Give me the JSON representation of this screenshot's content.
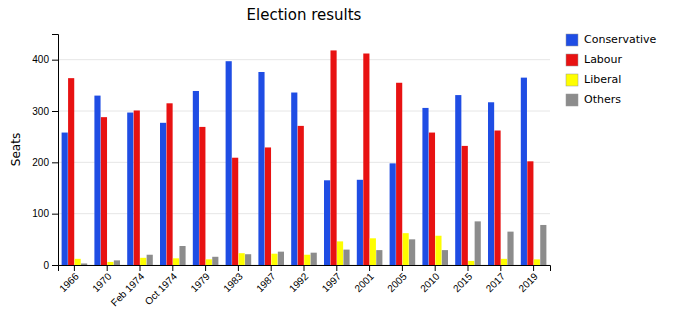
{
  "chart_data": {
    "type": "bar",
    "title": "Election results",
    "y_label": "Seats",
    "categories": [
      "1966",
      "1970",
      "Feb 1974",
      "Oct 1974",
      "1979",
      "1983",
      "1987",
      "1992",
      "1997",
      "2001",
      "2005",
      "2010",
      "2015",
      "2017",
      "2019"
    ],
    "series": [
      {
        "name": "Conservative",
        "color": "#1f4de4",
        "values": [
          258,
          330,
          297,
          277,
          339,
          397,
          376,
          336,
          165,
          166,
          198,
          306,
          331,
          317,
          365
        ]
      },
      {
        "name": "Labour",
        "color": "#e81212",
        "values": [
          364,
          288,
          301,
          315,
          269,
          209,
          229,
          271,
          418,
          412,
          355,
          258,
          232,
          262,
          202
        ]
      },
      {
        "name": "Liberal",
        "color": "#fefe00",
        "values": [
          12,
          6,
          14,
          13,
          11,
          23,
          22,
          20,
          46,
          52,
          62,
          57,
          8,
          12,
          11
        ]
      },
      {
        "name": "Others",
        "color": "#8c8c8c",
        "values": [
          3,
          9,
          20,
          37,
          16,
          21,
          26,
          24,
          30,
          29,
          50,
          29,
          85,
          65,
          78
        ]
      }
    ],
    "ylim": [
      0,
      450
    ],
    "yticks": [
      0,
      100,
      200,
      300,
      400
    ],
    "grid": true,
    "legend": "right"
  }
}
